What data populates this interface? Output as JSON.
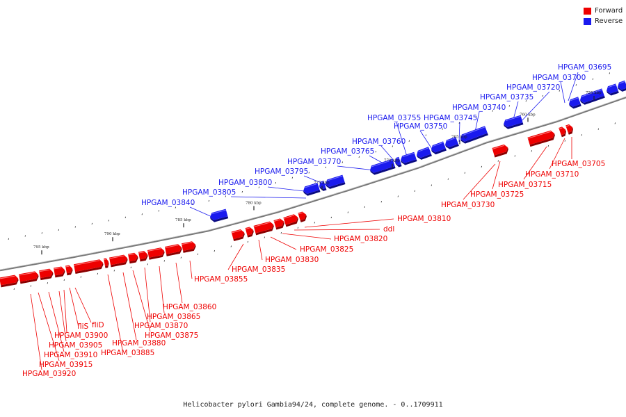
{
  "legend": {
    "forward_label": "Forward",
    "reverse_label": "Reverse",
    "forward_color": "#ee0000",
    "reverse_color": "#1a1aee"
  },
  "caption": "Helicobacter pylori Gambia94/24, complete genome. - 0..1709911",
  "colors": {
    "forward": "#ee0000",
    "reverse": "#1a1aee",
    "backbone": "#777777"
  },
  "ticks": [
    "795 kbp",
    "790 kbp",
    "785 kbp",
    "780 kbp",
    "775 kbp",
    "770 kbp",
    "765 kbp",
    "760 kbp",
    "755 kbp"
  ],
  "reverse_labels": [
    "HPGAM_03695",
    "HPGAM_03700",
    "HPGAM_03720",
    "HPGAM_03735",
    "HPGAM_03740",
    "HPGAM_03745",
    "HPGAM_03750",
    "HPGAM_03755",
    "HPGAM_03760",
    "HPGAM_03765",
    "HPGAM_03770",
    "HPGAM_03795",
    "HPGAM_03800",
    "HPGAM_03805",
    "HPGAM_03840"
  ],
  "forward_labels": [
    "HPGAM_03705",
    "HPGAM_03710",
    "HPGAM_03715",
    "HPGAM_03725",
    "HPGAM_03730",
    "HPGAM_03810",
    "ddl",
    "HPGAM_03820",
    "HPGAM_03825",
    "HPGAM_03830",
    "HPGAM_03835",
    "HPGAM_03855",
    "HPGAM_03860",
    "HPGAM_03865",
    "HPGAM_03870",
    "HPGAM_03875",
    "HPGAM_03880",
    "HPGAM_03885",
    "fliD",
    "fliS",
    "HPGAM_03900",
    "HPGAM_03905",
    "HPGAM_03910",
    "HPGAM_03915",
    "HPGAM_03920"
  ]
}
